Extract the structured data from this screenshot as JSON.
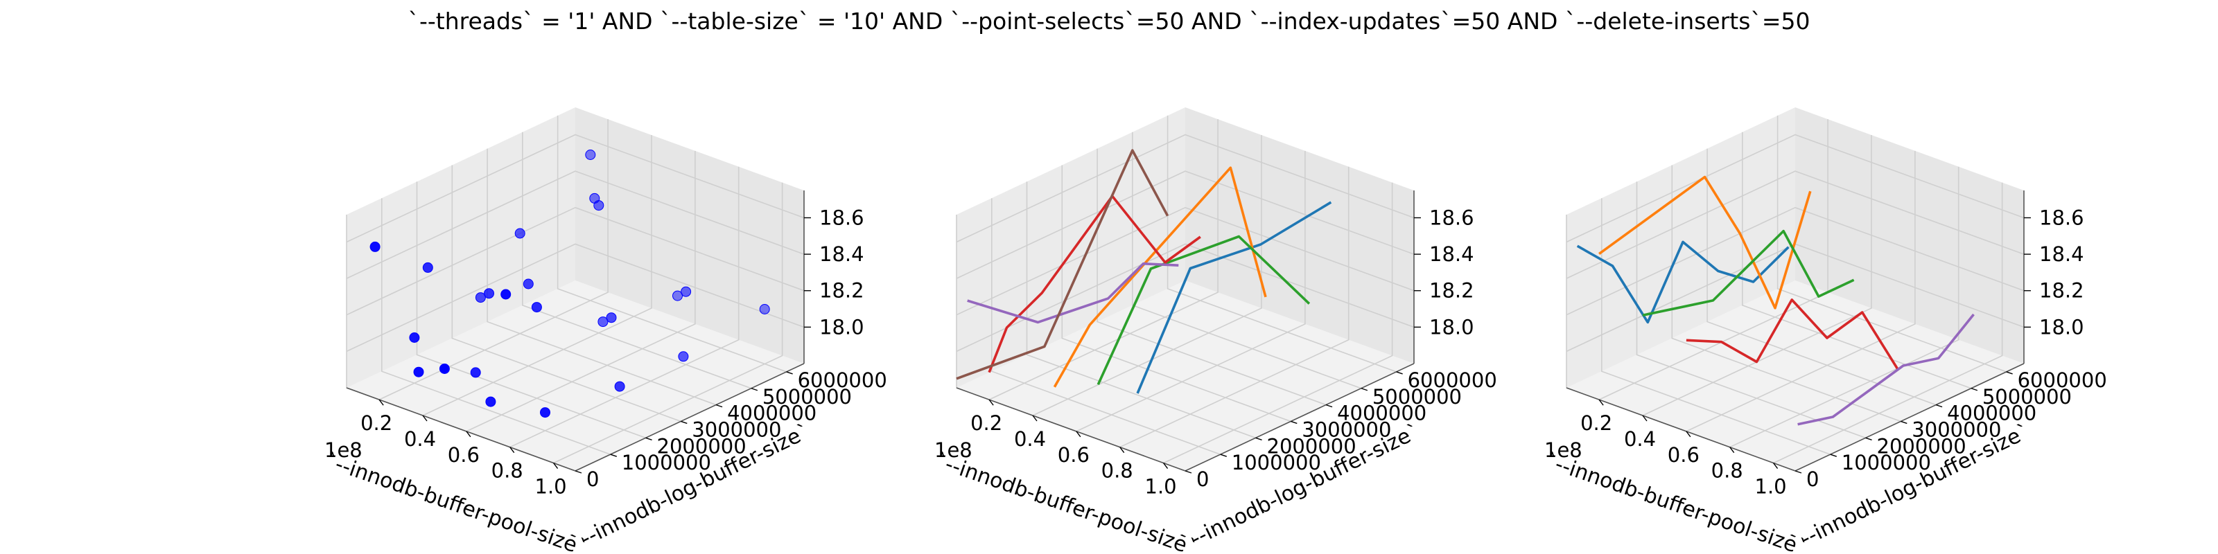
{
  "figure": {
    "suptitle": "`--threads` = '1' AND `--table-size` = '10'  AND `--point-selects`=50 AND `--index-updates`=50 AND `--delete-inserts`=50"
  },
  "chart_data": [
    {
      "type": "scatter3d",
      "xlabel": "`--innodb-buffer-pool-size`",
      "ylabel": "`--innodb-log-buffer-size`",
      "zlabel": "",
      "x_offset_label": "1e8",
      "xticks": [
        "0.2",
        "0.4",
        "0.6",
        "0.8",
        "1.0"
      ],
      "xtick_values": [
        20000000,
        40000000,
        60000000,
        80000000,
        100000000
      ],
      "yticks": [
        "0",
        "1000000",
        "2000000",
        "3000000",
        "4000000",
        "5000000",
        "6000000"
      ],
      "ytick_values": [
        0,
        1000000,
        2000000,
        3000000,
        4000000,
        5000000,
        6000000
      ],
      "zticks": [
        "18.0",
        "18.2",
        "18.4",
        "18.6"
      ],
      "ztick_values": [
        18.0,
        18.2,
        18.4,
        18.6
      ],
      "xlim": [
        5000000,
        110000000
      ],
      "ylim": [
        0,
        6500000
      ],
      "zlim": [
        17.8,
        18.75
      ],
      "grid": true,
      "color": "#0000ff",
      "points": [
        [
          10000000,
          500000,
          18.55
        ],
        [
          10000000,
          2000000,
          18.3
        ],
        [
          10000000,
          3500000,
          18.0
        ],
        [
          20000000,
          1000000,
          18.05
        ],
        [
          20000000,
          4000000,
          18.35
        ],
        [
          20000000,
          6000000,
          18.6
        ],
        [
          30000000,
          500000,
          17.95
        ],
        [
          30000000,
          2500000,
          18.2
        ],
        [
          30000000,
          5500000,
          18.45
        ],
        [
          40000000,
          1500000,
          17.9
        ],
        [
          40000000,
          3000000,
          18.25
        ],
        [
          40000000,
          5000000,
          18.5
        ],
        [
          50000000,
          0,
          18.1
        ],
        [
          50000000,
          4500000,
          17.95
        ],
        [
          60000000,
          2000000,
          18.3
        ],
        [
          60000000,
          6000000,
          18.0
        ],
        [
          70000000,
          500000,
          18.55
        ],
        [
          70000000,
          3500000,
          18.15
        ],
        [
          80000000,
          1000000,
          17.9
        ],
        [
          80000000,
          5000000,
          18.2
        ],
        [
          90000000,
          2500000,
          17.95
        ],
        [
          95000000,
          4000000,
          18.0
        ],
        [
          100000000,
          6000000,
          18.1
        ],
        [
          55000000,
          1000000,
          17.85
        ]
      ]
    },
    {
      "type": "line3d",
      "xlabel": "`--innodb-buffer-pool-size`",
      "ylabel": "`--innodb-log-buffer-size`",
      "zlabel": "",
      "x_offset_label": "1e8",
      "xticks": [
        "0.2",
        "0.4",
        "0.6",
        "0.8",
        "1.0"
      ],
      "xtick_values": [
        20000000,
        40000000,
        60000000,
        80000000,
        100000000
      ],
      "yticks": [
        "0",
        "1000000",
        "2000000",
        "3000000",
        "4000000",
        "5000000",
        "6000000"
      ],
      "ytick_values": [
        0,
        1000000,
        2000000,
        3000000,
        4000000,
        5000000,
        6000000
      ],
      "zticks": [
        "18.0",
        "18.2",
        "18.4",
        "18.6"
      ],
      "ztick_values": [
        18.0,
        18.2,
        18.4,
        18.6
      ],
      "xlim": [
        5000000,
        110000000
      ],
      "ylim": [
        0,
        6500000
      ],
      "zlim": [
        17.8,
        18.75
      ],
      "grid": true,
      "series": [
        {
          "color": "#1f77b4",
          "points": [
            [
              80000000,
              6000000,
              18.6
            ],
            [
              80000000,
              4000000,
              18.55
            ],
            [
              80000000,
              2000000,
              18.6
            ],
            [
              80000000,
              500000,
              18.05
            ]
          ]
        },
        {
          "color": "#ff7f0e",
          "points": [
            [
              50000000,
              6000000,
              17.95
            ],
            [
              50000000,
              5000000,
              18.75
            ],
            [
              50000000,
              3000000,
              18.5
            ],
            [
              50000000,
              1000000,
              18.25
            ],
            [
              50000000,
              0,
              18.0
            ]
          ]
        },
        {
          "color": "#2ca02c",
          "points": [
            [
              70000000,
              6000000,
              18.0
            ],
            [
              70000000,
              4000000,
              18.55
            ],
            [
              70000000,
              1500000,
              18.6
            ],
            [
              70000000,
              0,
              18.1
            ]
          ]
        },
        {
          "color": "#d62728",
          "points": [
            [
              20000000,
              6000000,
              18.15
            ],
            [
              20000000,
              5000000,
              18.1
            ],
            [
              20000000,
              3500000,
              18.6
            ],
            [
              20000000,
              1500000,
              18.25
            ],
            [
              20000000,
              500000,
              18.15
            ],
            [
              20000000,
              0,
              17.95
            ]
          ]
        },
        {
          "color": "#9467bd",
          "points": [
            [
              10000000,
              6000000,
              17.95
            ],
            [
              10000000,
              5000000,
              18.05
            ],
            [
              10000000,
              4000000,
              17.95
            ],
            [
              10000000,
              2000000,
              18.0
            ],
            [
              10000000,
              0,
              18.3
            ]
          ]
        },
        {
          "color": "#8c564b",
          "points": [
            [
              5000000,
              6000000,
              18.2
            ],
            [
              5000000,
              5000000,
              18.65
            ],
            [
              5000000,
              2500000,
              17.8
            ],
            [
              5000000,
              0,
              17.85
            ]
          ]
        }
      ]
    },
    {
      "type": "line3d",
      "xlabel": "`--innodb-buffer-pool-size`",
      "ylabel": "`--innodb-log-buffer-size`",
      "zlabel": "",
      "x_offset_label": "1e8",
      "xticks": [
        "0.2",
        "0.4",
        "0.6",
        "0.8",
        "1.0"
      ],
      "xtick_values": [
        20000000,
        40000000,
        60000000,
        80000000,
        100000000
      ],
      "yticks": [
        "0",
        "1000000",
        "2000000",
        "3000000",
        "4000000",
        "5000000",
        "6000000"
      ],
      "ytick_values": [
        0,
        1000000,
        2000000,
        3000000,
        4000000,
        5000000,
        6000000
      ],
      "zticks": [
        "18.0",
        "18.2",
        "18.4",
        "18.6"
      ],
      "ztick_values": [
        18.0,
        18.2,
        18.4,
        18.6
      ],
      "xlim": [
        5000000,
        110000000
      ],
      "ylim": [
        0,
        6500000
      ],
      "zlim": [
        17.8,
        18.75
      ],
      "grid": true,
      "series": [
        {
          "color": "#1f77b4",
          "points": [
            [
              10000000,
              6000000,
              18.05
            ],
            [
              10000000,
              5000000,
              17.95
            ],
            [
              10000000,
              4000000,
              18.1
            ],
            [
              10000000,
              3000000,
              18.35
            ],
            [
              10000000,
              2000000,
              18.0
            ],
            [
              10000000,
              1000000,
              18.4
            ],
            [
              10000000,
              0,
              18.6
            ]
          ]
        },
        {
          "color": "#ff7f0e",
          "points": [
            [
              20000000,
              6000000,
              18.4
            ],
            [
              20000000,
              5000000,
              17.85
            ],
            [
              20000000,
              4000000,
              18.35
            ],
            [
              20000000,
              3000000,
              18.75
            ],
            [
              20000000,
              0,
              18.6
            ]
          ]
        },
        {
          "color": "#2ca02c",
          "points": [
            [
              40000000,
              6000000,
              18.0
            ],
            [
              40000000,
              5000000,
              18.0
            ],
            [
              40000000,
              4000000,
              18.45
            ],
            [
              40000000,
              3000000,
              18.35
            ],
            [
              40000000,
              2000000,
              18.25
            ],
            [
              40000000,
              0,
              18.35
            ]
          ]
        },
        {
          "color": "#d62728",
          "points": [
            [
              60000000,
              6000000,
              17.6
            ],
            [
              60000000,
              5000000,
              18.0
            ],
            [
              60000000,
              4000000,
              17.95
            ],
            [
              60000000,
              3000000,
              18.25
            ],
            [
              60000000,
              2000000,
              18.0
            ],
            [
              60000000,
              1000000,
              18.2
            ],
            [
              60000000,
              0,
              18.3
            ]
          ]
        },
        {
          "color": "#9467bd",
          "points": [
            [
              95000000,
              6000000,
              18.05
            ],
            [
              95000000,
              5000000,
              17.9
            ],
            [
              95000000,
              4000000,
              17.95
            ],
            [
              95000000,
              3000000,
              17.9
            ],
            [
              95000000,
              2000000,
              17.85
            ],
            [
              95000000,
              1000000,
              17.9
            ]
          ]
        }
      ]
    }
  ]
}
